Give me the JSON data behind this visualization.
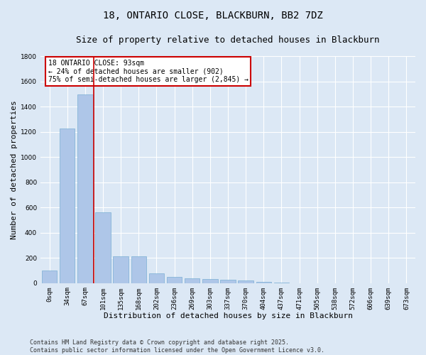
{
  "title_line1": "18, ONTARIO CLOSE, BLACKBURN, BB2 7DZ",
  "title_line2": "Size of property relative to detached houses in Blackburn",
  "xlabel": "Distribution of detached houses by size in Blackburn",
  "ylabel": "Number of detached properties",
  "categories": [
    "0sqm",
    "34sqm",
    "67sqm",
    "101sqm",
    "135sqm",
    "168sqm",
    "202sqm",
    "236sqm",
    "269sqm",
    "303sqm",
    "337sqm",
    "370sqm",
    "404sqm",
    "437sqm",
    "471sqm",
    "505sqm",
    "538sqm",
    "572sqm",
    "606sqm",
    "639sqm",
    "673sqm"
  ],
  "values": [
    100,
    1230,
    1500,
    560,
    210,
    210,
    75,
    50,
    40,
    35,
    25,
    20,
    10,
    2,
    0,
    0,
    0,
    0,
    0,
    0,
    0
  ],
  "bar_color": "#aec6e8",
  "bar_edge_color": "#7aafd4",
  "vline_color": "#cc0000",
  "annotation_text": "18 ONTARIO CLOSE: 93sqm\n← 24% of detached houses are smaller (902)\n75% of semi-detached houses are larger (2,845) →",
  "annotation_box_color": "#ffffff",
  "annotation_box_edge": "#cc0000",
  "ylim": [
    0,
    1800
  ],
  "yticks": [
    0,
    200,
    400,
    600,
    800,
    1000,
    1200,
    1400,
    1600,
    1800
  ],
  "bg_color": "#dce8f5",
  "plot_bg_color": "#dce8f5",
  "footer_line1": "Contains HM Land Registry data © Crown copyright and database right 2025.",
  "footer_line2": "Contains public sector information licensed under the Open Government Licence v3.0.",
  "title_fontsize": 10,
  "subtitle_fontsize": 9,
  "tick_fontsize": 6.5,
  "label_fontsize": 8,
  "annot_fontsize": 7,
  "footer_fontsize": 6
}
